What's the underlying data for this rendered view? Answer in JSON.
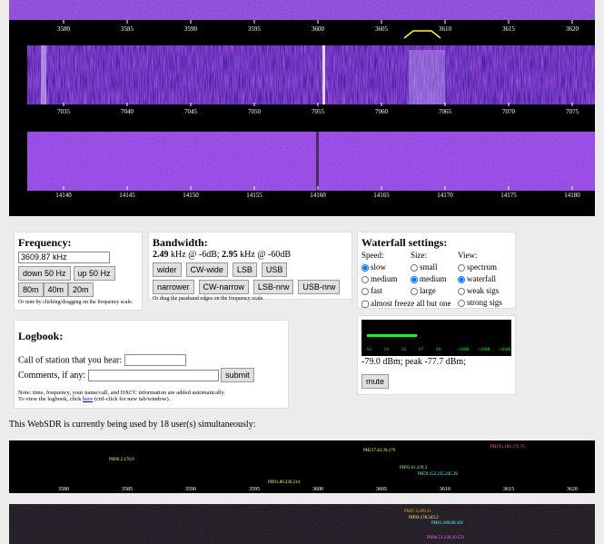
{
  "scales": [
    {
      "labels": [
        "3580",
        "3585",
        "3590",
        "3595",
        "3600",
        "3605",
        "3610",
        "3615",
        "3620"
      ]
    },
    {
      "labels": [
        "7035",
        "7040",
        "7045",
        "7050",
        "7055",
        "7060",
        "7065",
        "7070",
        "7075"
      ]
    },
    {
      "labels": [
        "14140",
        "14145",
        "14150",
        "14155",
        "14160",
        "14165",
        "14170",
        "14175",
        "14180"
      ]
    }
  ],
  "frequency": {
    "title": "Frequency:",
    "value": "3609.87 kHz",
    "buttons": [
      "down 50 Hz",
      "up 50 Hz"
    ],
    "bands": [
      "80m",
      "40m",
      "20m"
    ],
    "hint": "Or tune by clicking/dragging on the frequency scale."
  },
  "bandwidth": {
    "title": "Bandwidth:",
    "info": [
      "2.49",
      "kHz @ -6dB;",
      "2.95",
      "kHz @ -60dB"
    ],
    "buttons": [
      [
        "wider",
        "CW-wide",
        "LSB",
        "USB"
      ],
      [
        "narrower",
        "CW-narrow",
        "LSB-nrw",
        "USB-nrw"
      ]
    ],
    "hint": "Or drag the passband edges on the frequency scale."
  },
  "waterfall": {
    "title": "Waterfall settings:",
    "speed": {
      "title": "Speed:",
      "options": [
        "slow",
        "medium",
        "fast"
      ]
    },
    "size": {
      "title": "Size:",
      "options": [
        "small",
        "medium",
        "large"
      ]
    },
    "view": {
      "title": "View:",
      "options": [
        "spectrum",
        "waterfall",
        "weak sigs",
        "strong sigs"
      ]
    },
    "freeze": "almost freeze all but one"
  },
  "logbook": {
    "title": "Logbook:",
    "call": "Call of station that you hear:",
    "comments": "Comments, if any:",
    "submit": "submit",
    "note": "Note: time, frequency, your name/call, and DXCC information are added automatically.",
    "view": [
      "To view the logbook, click",
      "here",
      "(ctrl-click for new tab/window)."
    ]
  },
  "smeter": {
    "scale": [
      "S1",
      "S3",
      "S5",
      "S7",
      "S9",
      "+10dB",
      "+20dB",
      "+30dB"
    ],
    "reading": "-79.0 dBm; peak -77.7 dBm;",
    "mute": "mute"
  },
  "users": {
    "text": "This WebSDR is currently being used by 18 user(s) simultaneously:",
    "scale": [
      "3580",
      "3585",
      "3590",
      "3595",
      "3600",
      "3605",
      "3610",
      "3615",
      "3620"
    ],
    "labels": [
      "PH90.2.170.9",
      "PH217.43.39.179",
      "PH95.61.229.3",
      "PH91.80.230.214",
      "PH79.152.235.245.39",
      "PH195.168.179.76",
      "PH87.4.200.11",
      "PH93.178.243.2",
      "PH91.169.60.161",
      "PH86.51.230.20.233"
    ]
  }
}
